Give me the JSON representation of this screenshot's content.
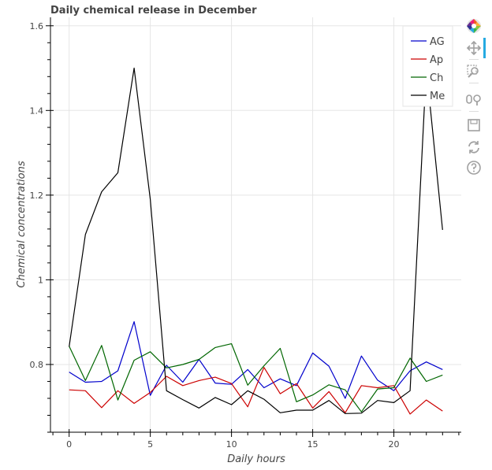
{
  "chart_data": {
    "type": "line",
    "title": "Daily chemical release in December",
    "xlabel": "Daily hours",
    "ylabel": "Chemical concentrations",
    "x": [
      0,
      1,
      2,
      3,
      4,
      5,
      6,
      7,
      8,
      9,
      10,
      11,
      12,
      13,
      14,
      15,
      16,
      17,
      18,
      19,
      20,
      21,
      22,
      23
    ],
    "xlim": [
      -1.15,
      24.15
    ],
    "ylim": [
      0.64,
      1.62
    ],
    "xticks": [
      0,
      5,
      10,
      15,
      20
    ],
    "yticks": [
      0.8,
      1,
      1.2,
      1.4,
      1.6
    ],
    "ytick_labels": [
      "0.8",
      "1",
      "1.2",
      "1.4",
      "1.6"
    ],
    "grid": true,
    "legend_position": "top-right",
    "series": [
      {
        "name": "AG",
        "color": "#0000cc",
        "values": [
          0.782,
          0.758,
          0.76,
          0.785,
          0.901,
          0.727,
          0.798,
          0.758,
          0.812,
          0.756,
          0.753,
          0.788,
          0.745,
          0.766,
          0.75,
          0.827,
          0.796,
          0.72,
          0.82,
          0.763,
          0.738,
          0.785,
          0.806,
          0.788
        ]
      },
      {
        "name": "Ap",
        "color": "#cc0000",
        "values": [
          0.74,
          0.738,
          0.698,
          0.738,
          0.708,
          0.734,
          0.772,
          0.75,
          0.762,
          0.77,
          0.755,
          0.7,
          0.793,
          0.731,
          0.755,
          0.697,
          0.736,
          0.686,
          0.75,
          0.745,
          0.75,
          0.683,
          0.716,
          0.69
        ]
      },
      {
        "name": "Ch",
        "color": "#006600",
        "values": [
          0.843,
          0.762,
          0.845,
          0.716,
          0.81,
          0.83,
          0.792,
          0.8,
          0.812,
          0.84,
          0.849,
          0.751,
          0.797,
          0.838,
          0.712,
          0.728,
          0.752,
          0.74,
          0.688,
          0.742,
          0.745,
          0.815,
          0.76,
          0.775
        ]
      },
      {
        "name": "Me",
        "color": "#000000",
        "values": [
          0.842,
          1.107,
          1.208,
          1.253,
          1.5,
          1.19,
          0.738,
          0.717,
          0.697,
          0.722,
          0.705,
          0.738,
          0.718,
          0.686,
          0.692,
          0.692,
          0.715,
          0.684,
          0.685,
          0.715,
          0.71,
          0.738,
          1.5,
          1.118
        ]
      }
    ]
  },
  "toolbar": {
    "tools": [
      {
        "icon": "bokeh-logo-icon"
      },
      {
        "icon": "pan-icon"
      },
      {
        "icon": "box-zoom-icon"
      },
      {
        "icon": "wheel-zoom-icon"
      },
      {
        "icon": "save-icon"
      },
      {
        "icon": "reset-icon"
      },
      {
        "icon": "help-icon"
      }
    ],
    "active_color": "#26aae1"
  }
}
